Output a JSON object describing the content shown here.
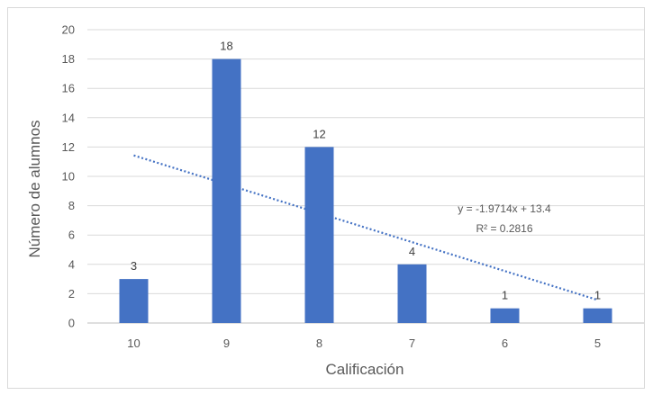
{
  "chart_data": {
    "type": "bar",
    "categories": [
      "10",
      "9",
      "8",
      "7",
      "6",
      "5"
    ],
    "values": [
      3,
      18,
      12,
      4,
      1,
      1
    ],
    "data_labels": [
      "3",
      "18",
      "12",
      "4",
      "1",
      "1"
    ],
    "xlabel": "Calificación",
    "ylabel": "Número de alumnos",
    "ylim": [
      0,
      20
    ],
    "yticks": [
      0,
      2,
      4,
      6,
      8,
      10,
      12,
      14,
      16,
      18,
      20
    ],
    "grid": true,
    "legend": "none",
    "bar_color": "#4472c4",
    "trendline": {
      "type": "linear",
      "slope": -1.9714,
      "intercept": 13.4,
      "equation": "y = -1.9714x + 13.4",
      "r_squared": "R² = 0.2816",
      "color": "#4472c4",
      "style": "dotted"
    }
  }
}
